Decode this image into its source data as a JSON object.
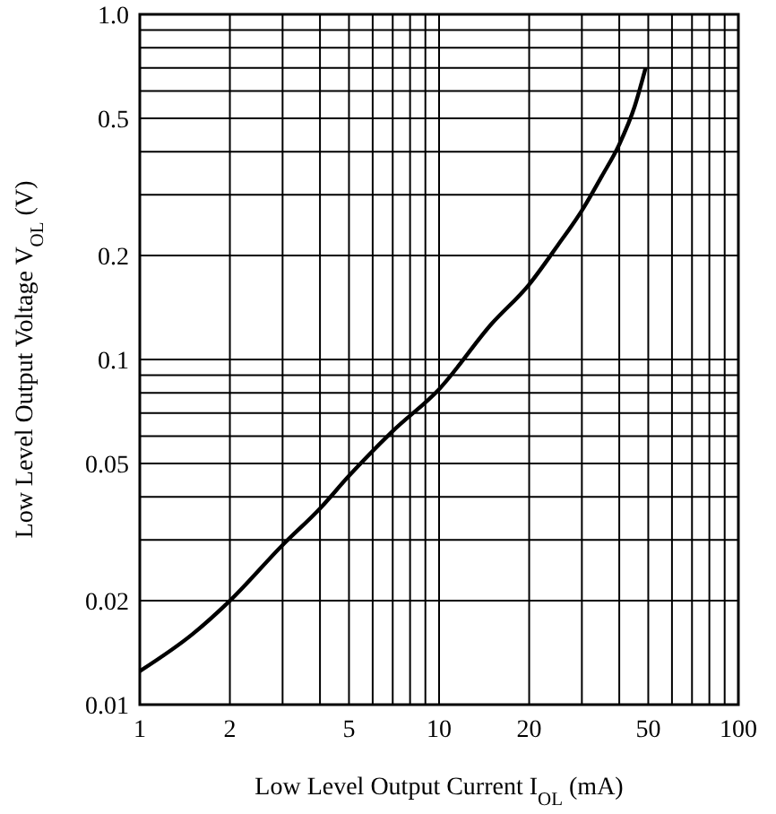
{
  "chart_data": {
    "type": "line",
    "xlabel": "Low Level Output Current I$_{OL}$ (mA)",
    "ylabel": "Low Level Output Voltage V$_{OL}$ (V)",
    "log": "xy",
    "grid": true,
    "x": [
      1,
      1.5,
      2,
      3,
      4,
      5,
      7,
      10,
      15,
      20,
      25,
      30,
      35,
      40,
      45,
      49
    ],
    "series": [
      {
        "color": "#000000",
        "values": [
          0.0125,
          0.016,
          0.02,
          0.029,
          0.037,
          0.046,
          0.062,
          0.082,
          0.127,
          0.165,
          0.215,
          0.27,
          0.34,
          0.42,
          0.54,
          0.7
        ]
      }
    ],
    "xlim": [
      1,
      100
    ],
    "ylim": [
      0.01,
      1.0
    ],
    "xticks": [
      1,
      2,
      5,
      10,
      20,
      50,
      100
    ],
    "yticks": [
      {
        "value": 0.01,
        "label": "0.01"
      },
      {
        "value": 0.02,
        "label": "0.02"
      },
      {
        "value": 0.05,
        "label": "0.05"
      },
      {
        "value": 0.1,
        "label": "0.1"
      },
      {
        "value": 0.2,
        "label": "0.2"
      },
      {
        "value": 0.5,
        "label": "0.5"
      },
      {
        "value": 1.0,
        "label": "1.0"
      }
    ],
    "marker": "none",
    "line_style": "solid"
  }
}
